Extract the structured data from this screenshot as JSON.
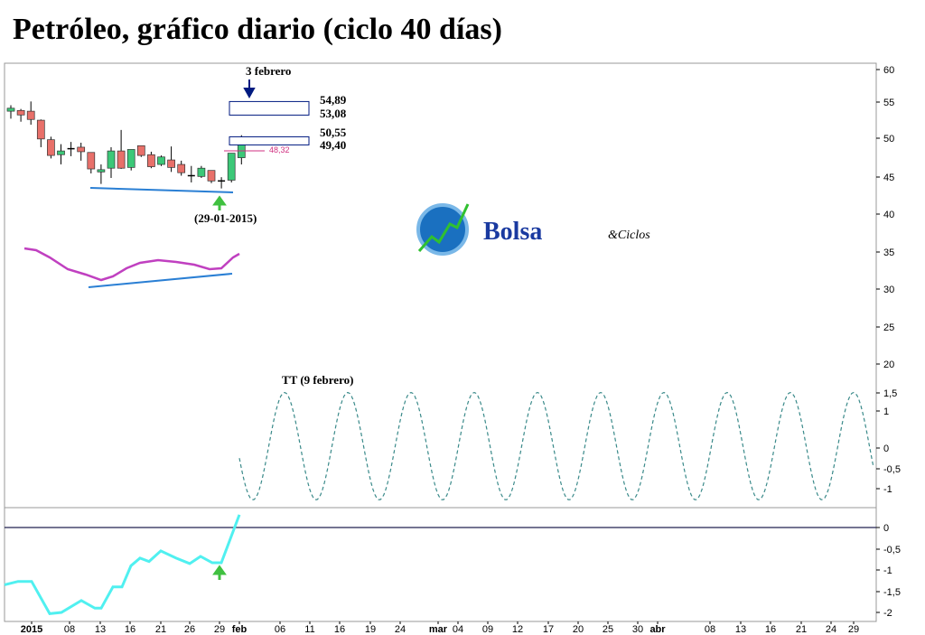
{
  "title": "Petróleo, gráfico diario (ciclo 40 días)",
  "logo": {
    "text": "Bolsa",
    "suffix": "&Ciclos"
  },
  "annotations": {
    "top_date": "3 febrero",
    "low_date": "(29-01-2015)",
    "tt_label": "TT (9 febrero)",
    "level_mid": "48,32",
    "targets": [
      "54,89",
      "53,08",
      "50,55",
      "49,40"
    ]
  },
  "colors": {
    "up": "#3cc878",
    "down": "#e8706a",
    "trend": "#2a7fd4",
    "oscillator": "#c040c0",
    "momentum": "#50f0f0",
    "cycle": "#3a8a8a",
    "arrow_down": "#001a80",
    "arrow_up": "#40c040",
    "level": "#d03080"
  },
  "chart_data": [
    {
      "type": "candlestick",
      "price_axis": {
        "ticks": [
          "60",
          "55",
          "50",
          "45",
          "40",
          "35",
          "30",
          "25",
          "20"
        ],
        "range": [
          18,
          61
        ]
      },
      "candles": [
        [
          53.6,
          54.4,
          52.6,
          54.0
        ],
        [
          53.7,
          53.9,
          52.2,
          53.1
        ],
        [
          53.6,
          54.9,
          51.8,
          52.5
        ],
        [
          52.4,
          52.5,
          48.8,
          49.9
        ],
        [
          49.8,
          50.2,
          47.3,
          47.7
        ],
        [
          47.8,
          49.2,
          46.5,
          48.3
        ],
        [
          48.6,
          49.5,
          47.6,
          48.6
        ],
        [
          48.8,
          49.4,
          47.0,
          48.2
        ],
        [
          48.1,
          48.1,
          45.3,
          45.9
        ],
        [
          45.5,
          46.5,
          43.9,
          45.8
        ],
        [
          46.0,
          48.8,
          44.7,
          48.3
        ],
        [
          48.3,
          51.1,
          45.9,
          46.0
        ],
        [
          46.1,
          48.5,
          45.7,
          48.5
        ],
        [
          49.0,
          49.0,
          47.5,
          47.7
        ],
        [
          47.8,
          48.2,
          46.0,
          46.2
        ],
        [
          46.5,
          47.7,
          46.3,
          47.5
        ],
        [
          47.1,
          48.9,
          45.5,
          46.1
        ],
        [
          46.5,
          47.0,
          45.0,
          45.4
        ],
        [
          45.0,
          46.3,
          44.1,
          45.0
        ],
        [
          44.9,
          46.3,
          44.7,
          46.0
        ],
        [
          45.7,
          45.7,
          44.0,
          44.3
        ],
        [
          44.3,
          44.8,
          43.3,
          44.3
        ],
        [
          44.4,
          48.0,
          44.1,
          48.0
        ],
        [
          47.4,
          50.4,
          46.5,
          49.4
        ]
      ],
      "targets": [
        [
          53.08,
          54.89
        ],
        [
          49.4,
          50.55
        ]
      ],
      "level": 48.32
    },
    {
      "type": "line",
      "name": "TT",
      "axis_ticks": [
        "1,5",
        "1",
        "0",
        "-0,5",
        "-1"
      ],
      "cycle_days": 40,
      "amplitude_range": [
        -1.4,
        1.5
      ]
    },
    {
      "type": "line",
      "axis_ticks": [
        "0",
        "-0,5",
        "-1",
        "-1,5",
        "-2"
      ],
      "values": [
        -1.35,
        -1.27,
        -1.27,
        -2.03,
        -2.0,
        -1.72,
        -1.9,
        -1.9,
        -1.4,
        -1.4,
        -0.9,
        -0.72,
        -0.8,
        -0.55,
        -0.72,
        -0.85,
        -0.68,
        -0.83,
        -0.83,
        0.3
      ]
    },
    {
      "type": "axis",
      "x_ticks": [
        "2015",
        "08",
        "13",
        "16",
        "21",
        "26",
        "29",
        "feb",
        "06",
        "11",
        "16",
        "19",
        "24",
        "mar",
        "04",
        "09",
        "12",
        "17",
        "20",
        "25",
        "30",
        "abr",
        "08",
        "13",
        "16",
        "21",
        "24",
        "29"
      ]
    }
  ]
}
